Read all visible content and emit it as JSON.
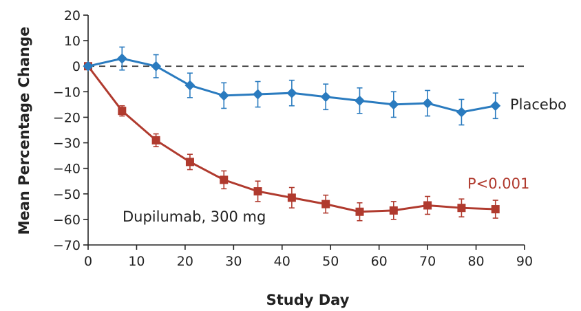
{
  "chart_data": {
    "type": "line",
    "xlabel": "Study Day",
    "ylabel": "Mean Percentage Change",
    "xlim": [
      0,
      90
    ],
    "ylim": [
      -70,
      20
    ],
    "xticks": [
      0,
      10,
      20,
      30,
      40,
      50,
      60,
      70,
      80,
      90
    ],
    "yticks": [
      20,
      10,
      0,
      -10,
      -20,
      -30,
      -40,
      -50,
      -60,
      -70
    ],
    "xtick_labels": [
      "0",
      "10",
      "20",
      "30",
      "40",
      "50",
      "60",
      "70",
      "80",
      "90"
    ],
    "ytick_labels": [
      "20",
      "10",
      "0",
      "−10",
      "−20",
      "−30",
      "−40",
      "−50",
      "−60",
      "−70"
    ],
    "reference_line": {
      "y": 0,
      "style": "dashed"
    },
    "grid": false,
    "series": [
      {
        "name": "Placebo",
        "color": "#2a7bbf",
        "marker": "diamond",
        "x": [
          0,
          7,
          14,
          21,
          28,
          35,
          42,
          49,
          56,
          63,
          70,
          77,
          84
        ],
        "y": [
          0,
          3,
          0,
          -7.5,
          -11.5,
          -11,
          -10.5,
          -12,
          -13.5,
          -15,
          -14.5,
          -18,
          -15.5
        ],
        "err": [
          0,
          4.5,
          4.5,
          4.8,
          5,
          5,
          5,
          5,
          5,
          5,
          5,
          5,
          5
        ]
      },
      {
        "name": "Dupilumab, 300 mg",
        "color": "#b03a2e",
        "marker": "square",
        "x": [
          0,
          7,
          14,
          21,
          28,
          35,
          42,
          49,
          56,
          63,
          70,
          77,
          84
        ],
        "y": [
          0,
          -17.5,
          -29,
          -37.5,
          -44.5,
          -49,
          -51.5,
          -54,
          -57,
          -56.5,
          -54.5,
          -55.5,
          -56
        ],
        "err": [
          0,
          2,
          2.5,
          3,
          3.5,
          4,
          4,
          3.5,
          3.5,
          3.5,
          3.5,
          3.5,
          3.5
        ]
      }
    ],
    "annotations": [
      {
        "text": "P<0.001",
        "color": "#b03a2e"
      }
    ]
  }
}
